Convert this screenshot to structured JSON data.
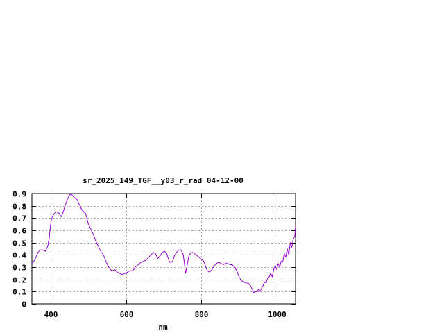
{
  "chart_data": {
    "type": "line",
    "title": "sr_2025_149_TGF__y03_r_rad 04-12-00",
    "xlabel": "nm",
    "ylabel": "",
    "xlim": [
      350,
      1050
    ],
    "ylim": [
      0,
      0.9
    ],
    "x_ticks": [
      400,
      600,
      800,
      1000
    ],
    "x_tick_labels": [
      "400",
      "600",
      "800",
      "1000"
    ],
    "y_ticks": [
      0,
      0.1,
      0.2,
      0.3,
      0.4,
      0.5,
      0.6,
      0.7,
      0.8,
      0.9
    ],
    "y_tick_labels": [
      "0",
      "0.1",
      "0.2",
      "0.3",
      "0.4",
      "0.5",
      "0.6",
      "0.7",
      "0.8",
      "0.9"
    ],
    "grid": true,
    "legend": "none",
    "series": [
      {
        "color": "#9400d3",
        "points": [
          [
            350,
            0.33
          ],
          [
            358,
            0.36
          ],
          [
            366,
            0.42
          ],
          [
            372,
            0.44
          ],
          [
            380,
            0.44
          ],
          [
            386,
            0.43
          ],
          [
            392,
            0.47
          ],
          [
            396,
            0.54
          ],
          [
            399,
            0.63
          ],
          [
            402,
            0.69
          ],
          [
            406,
            0.72
          ],
          [
            410,
            0.74
          ],
          [
            416,
            0.75
          ],
          [
            422,
            0.74
          ],
          [
            428,
            0.71
          ],
          [
            432,
            0.74
          ],
          [
            438,
            0.8
          ],
          [
            444,
            0.85
          ],
          [
            450,
            0.89
          ],
          [
            456,
            0.89
          ],
          [
            462,
            0.87
          ],
          [
            470,
            0.85
          ],
          [
            476,
            0.81
          ],
          [
            482,
            0.77
          ],
          [
            488,
            0.75
          ],
          [
            492,
            0.74
          ],
          [
            496,
            0.7
          ],
          [
            500,
            0.65
          ],
          [
            508,
            0.6
          ],
          [
            514,
            0.56
          ],
          [
            520,
            0.51
          ],
          [
            528,
            0.46
          ],
          [
            534,
            0.42
          ],
          [
            540,
            0.4
          ],
          [
            546,
            0.35
          ],
          [
            552,
            0.31
          ],
          [
            558,
            0.28
          ],
          [
            564,
            0.27
          ],
          [
            570,
            0.28
          ],
          [
            576,
            0.26
          ],
          [
            582,
            0.25
          ],
          [
            590,
            0.24
          ],
          [
            598,
            0.25
          ],
          [
            604,
            0.26
          ],
          [
            610,
            0.27
          ],
          [
            618,
            0.27
          ],
          [
            624,
            0.3
          ],
          [
            632,
            0.32
          ],
          [
            640,
            0.34
          ],
          [
            648,
            0.35
          ],
          [
            654,
            0.36
          ],
          [
            660,
            0.38
          ],
          [
            666,
            0.4
          ],
          [
            672,
            0.42
          ],
          [
            678,
            0.41
          ],
          [
            684,
            0.37
          ],
          [
            690,
            0.39
          ],
          [
            696,
            0.42
          ],
          [
            702,
            0.43
          ],
          [
            708,
            0.41
          ],
          [
            712,
            0.37
          ],
          [
            716,
            0.34
          ],
          [
            720,
            0.34
          ],
          [
            724,
            0.35
          ],
          [
            728,
            0.39
          ],
          [
            734,
            0.42
          ],
          [
            740,
            0.44
          ],
          [
            746,
            0.44
          ],
          [
            752,
            0.4
          ],
          [
            756,
            0.3
          ],
          [
            758,
            0.25
          ],
          [
            762,
            0.31
          ],
          [
            766,
            0.38
          ],
          [
            770,
            0.41
          ],
          [
            776,
            0.42
          ],
          [
            782,
            0.41
          ],
          [
            790,
            0.39
          ],
          [
            798,
            0.37
          ],
          [
            806,
            0.35
          ],
          [
            812,
            0.3
          ],
          [
            816,
            0.27
          ],
          [
            822,
            0.26
          ],
          [
            828,
            0.28
          ],
          [
            834,
            0.31
          ],
          [
            840,
            0.33
          ],
          [
            846,
            0.34
          ],
          [
            852,
            0.33
          ],
          [
            858,
            0.32
          ],
          [
            864,
            0.33
          ],
          [
            870,
            0.33
          ],
          [
            876,
            0.32
          ],
          [
            882,
            0.32
          ],
          [
            888,
            0.3
          ],
          [
            894,
            0.27
          ],
          [
            900,
            0.22
          ],
          [
            906,
            0.19
          ],
          [
            912,
            0.18
          ],
          [
            918,
            0.17
          ],
          [
            924,
            0.17
          ],
          [
            930,
            0.15
          ],
          [
            935,
            0.12
          ],
          [
            939,
            0.09
          ],
          [
            944,
            0.1
          ],
          [
            948,
            0.1
          ],
          [
            952,
            0.12
          ],
          [
            956,
            0.1
          ],
          [
            960,
            0.13
          ],
          [
            964,
            0.15
          ],
          [
            968,
            0.18
          ],
          [
            972,
            0.17
          ],
          [
            976,
            0.21
          ],
          [
            980,
            0.22
          ],
          [
            984,
            0.25
          ],
          [
            988,
            0.22
          ],
          [
            992,
            0.28
          ],
          [
            996,
            0.31
          ],
          [
            1000,
            0.28
          ],
          [
            1004,
            0.33
          ],
          [
            1008,
            0.3
          ],
          [
            1012,
            0.35
          ],
          [
            1016,
            0.34
          ],
          [
            1020,
            0.41
          ],
          [
            1024,
            0.38
          ],
          [
            1028,
            0.45
          ],
          [
            1032,
            0.4
          ],
          [
            1036,
            0.5
          ],
          [
            1040,
            0.46
          ],
          [
            1044,
            0.53
          ],
          [
            1048,
            0.55
          ],
          [
            1050,
            0.63
          ]
        ]
      }
    ]
  }
}
